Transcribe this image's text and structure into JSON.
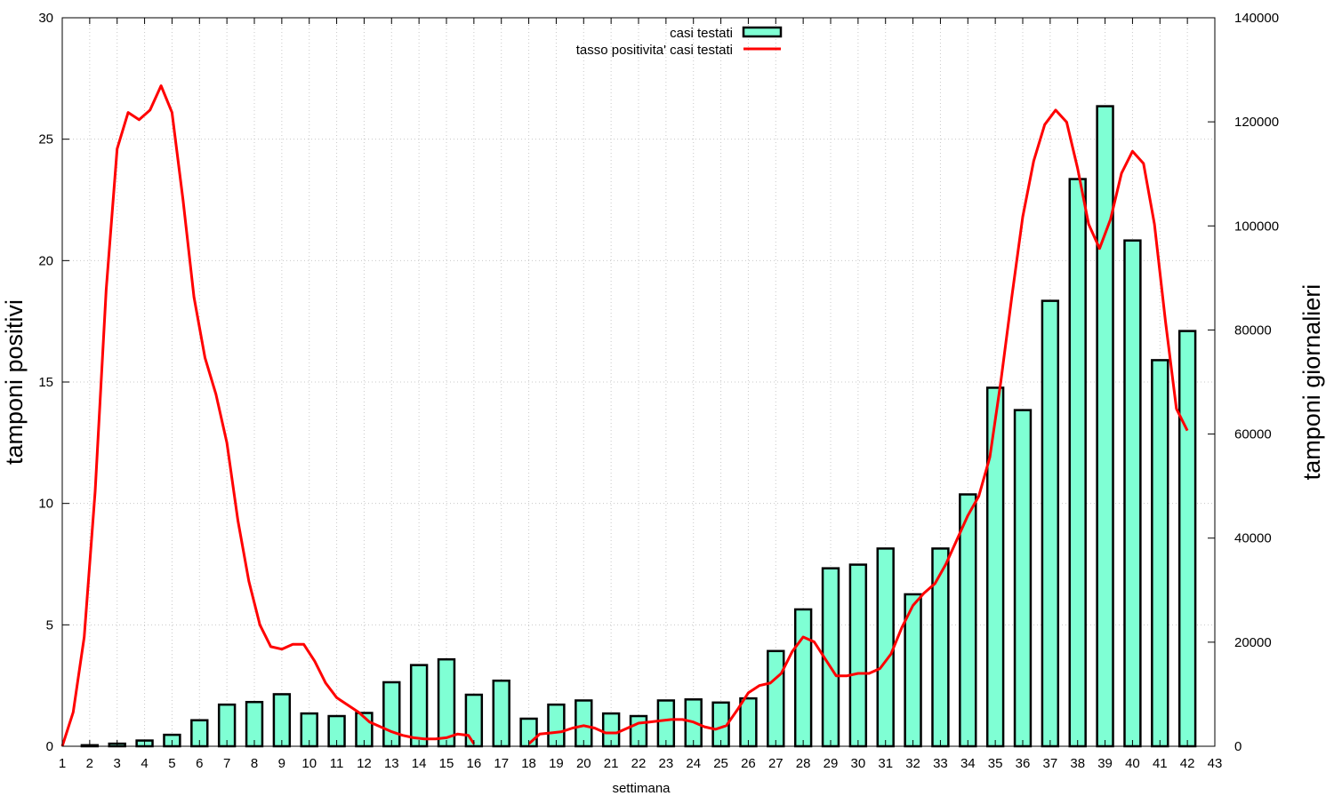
{
  "chart_data": {
    "type": "bar",
    "xlabel": "settimana",
    "ylabel_left": "tamponi positivi",
    "ylabel_right": "tamponi giornalieri",
    "xlim": [
      1,
      43
    ],
    "ylim_left": [
      0,
      30
    ],
    "ylim_right": [
      0,
      140000
    ],
    "x_ticks": [
      1,
      2,
      3,
      4,
      5,
      6,
      7,
      8,
      9,
      10,
      11,
      12,
      13,
      14,
      15,
      16,
      17,
      18,
      19,
      20,
      21,
      22,
      23,
      24,
      25,
      26,
      27,
      28,
      29,
      30,
      31,
      32,
      33,
      34,
      35,
      36,
      37,
      38,
      39,
      40,
      41,
      42,
      43
    ],
    "y_ticks_left": [
      0,
      5,
      10,
      15,
      20,
      25,
      30
    ],
    "y_ticks_right": [
      0,
      20000,
      40000,
      60000,
      80000,
      100000,
      120000,
      140000
    ],
    "grid": true,
    "legend_position": "top-center",
    "colors": {
      "bar_fill": "#7fffd4",
      "bar_stroke": "#000000",
      "line": "#ff0000",
      "grid": "#c8c8c8"
    },
    "series": [
      {
        "name": "casi testati",
        "type": "bar",
        "axis": "right",
        "x": [
          2,
          3,
          4,
          5,
          6,
          7,
          8,
          9,
          10,
          11,
          12,
          13,
          14,
          15,
          16,
          17,
          18,
          19,
          20,
          21,
          22,
          23,
          24,
          25,
          26,
          27,
          28,
          29,
          30,
          31,
          32,
          33,
          34,
          35,
          36,
          37,
          38,
          39,
          40,
          41,
          42
        ],
        "values": [
          200,
          500,
          1100,
          2200,
          5000,
          8000,
          8500,
          10000,
          6300,
          5800,
          6400,
          12300,
          15600,
          16700,
          9900,
          12600,
          5300,
          8000,
          8800,
          6300,
          5800,
          8800,
          9000,
          8400,
          9200,
          18300,
          26300,
          34200,
          34900,
          38000,
          29200,
          38000,
          48400,
          68900,
          64600,
          85600,
          109000,
          123000,
          97200,
          74200,
          79800
        ]
      },
      {
        "name": "tasso positivita' casi testati",
        "type": "line",
        "axis": "left",
        "x": [
          1,
          1.4,
          1.8,
          2.2,
          2.6,
          3,
          3.4,
          3.8,
          4.2,
          4.6,
          5,
          5.4,
          5.8,
          6.2,
          6.6,
          7,
          7.4,
          7.8,
          8.2,
          8.6,
          9,
          9.4,
          9.8,
          10.2,
          10.6,
          11,
          11.4,
          11.8,
          12.2,
          12.6,
          13,
          13.4,
          13.8,
          14.2,
          14.6,
          15,
          15.4,
          15.8,
          16,
          null,
          18,
          18.4,
          18.8,
          19.2,
          19.6,
          20,
          20.4,
          20.8,
          21.2,
          21.6,
          22,
          22.4,
          22.8,
          23.2,
          23.6,
          24,
          24.4,
          24.8,
          25.2,
          25.6,
          26,
          26.4,
          26.8,
          27.2,
          27.6,
          28,
          28.4,
          28.8,
          29.2,
          29.6,
          30,
          30.4,
          30.8,
          31.2,
          31.6,
          32,
          32.4,
          32.8,
          33.2,
          33.6,
          34,
          34.4,
          34.8,
          35.2,
          35.6,
          36,
          36.4,
          36.8,
          37.2,
          37.6,
          38,
          38.4,
          38.8,
          39.2,
          39.6,
          40,
          40.4,
          40.8,
          41.2,
          41.6,
          42
        ],
        "values": [
          0,
          1.4,
          4.5,
          10.5,
          18.8,
          24.6,
          26.1,
          25.8,
          26.2,
          27.2,
          26.1,
          22.5,
          18.5,
          16.0,
          14.5,
          12.5,
          9.3,
          6.8,
          5.0,
          4.1,
          4.0,
          4.2,
          4.2,
          3.5,
          2.6,
          2.0,
          1.7,
          1.4,
          1.0,
          0.8,
          0.6,
          0.45,
          0.35,
          0.3,
          0.3,
          0.35,
          0.5,
          0.45,
          0.1,
          null,
          0.1,
          0.5,
          0.55,
          0.6,
          0.75,
          0.85,
          0.75,
          0.55,
          0.55,
          0.75,
          0.95,
          1.0,
          1.05,
          1.1,
          1.1,
          1.0,
          0.8,
          0.7,
          0.85,
          1.5,
          2.2,
          2.5,
          2.6,
          3.0,
          3.9,
          4.5,
          4.3,
          3.6,
          2.9,
          2.9,
          3.0,
          3.0,
          3.2,
          3.8,
          4.9,
          5.8,
          6.3,
          6.7,
          7.5,
          8.5,
          9.5,
          10.3,
          11.9,
          15.0,
          18.5,
          21.8,
          24.1,
          25.6,
          26.2,
          25.7,
          23.8,
          21.5,
          20.5,
          21.7,
          23.6,
          24.5,
          24.0,
          21.5,
          17.5,
          13.9,
          13.0
        ]
      }
    ],
    "legend": [
      {
        "label": "casi testati",
        "kind": "box"
      },
      {
        "label": "tasso positivita' casi testati",
        "kind": "line"
      }
    ]
  }
}
